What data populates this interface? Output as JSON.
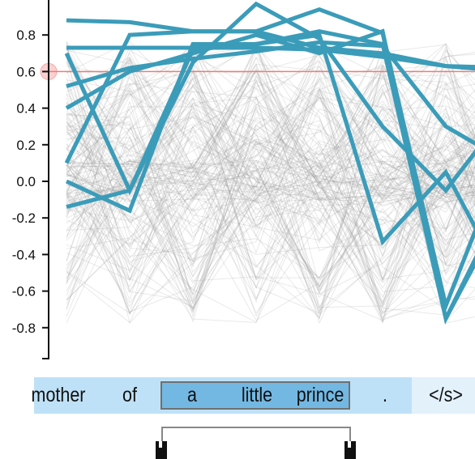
{
  "chart_data": {
    "type": "line",
    "y_ticks": [
      "0.8",
      "0.6",
      "0.4",
      "0.2",
      "0.0",
      "-0.2",
      "-0.4",
      "-0.6",
      "-0.8"
    ],
    "y_tick_values": [
      0.8,
      0.6,
      0.4,
      0.2,
      0.0,
      -0.2,
      -0.4,
      -0.6,
      -0.8
    ],
    "ylim": [
      -0.98,
      1.0
    ],
    "threshold": 0.6,
    "x_positions": 8,
    "highlight_color": "#3b9cb9",
    "threshold_color": "#f07a7a",
    "background_line_color": "#9a9a9a",
    "highlighted_series": [
      {
        "values": [
          0.88,
          0.87,
          0.82,
          0.82,
          0.73,
          0.7,
          0.63,
          0.6
        ]
      },
      {
        "values": [
          0.73,
          0.73,
          0.73,
          0.73,
          0.72,
          0.68,
          0.63,
          0.62
        ]
      },
      {
        "values": [
          0.52,
          0.62,
          0.67,
          0.71,
          0.76,
          0.74,
          0.3,
          0.1
        ]
      },
      {
        "values": [
          0.7,
          -0.05,
          0.65,
          0.97,
          0.78,
          0.3,
          -0.05,
          0.4
        ]
      },
      {
        "values": [
          0.1,
          0.8,
          0.82,
          0.82,
          0.94,
          0.81,
          -0.68,
          0.2
        ]
      },
      {
        "values": [
          -0.14,
          -0.05,
          0.72,
          0.75,
          0.82,
          0.75,
          -0.75,
          -0.05
        ]
      },
      {
        "values": [
          0.0,
          -0.16,
          0.75,
          0.75,
          0.8,
          -0.33,
          0.05,
          -0.6
        ]
      },
      {
        "values": [
          0.4,
          0.6,
          0.7,
          0.8,
          0.7,
          0.82,
          -0.75,
          -0.1
        ]
      }
    ]
  },
  "tokens": [
    "mother",
    "of",
    "a",
    "little",
    "prince",
    ".",
    "</s>"
  ],
  "selection": {
    "start": 2,
    "end": 4
  },
  "colors": {
    "token_bg": "#bfe1f7",
    "selection_bg": "#73b8e3",
    "last_token_bg": "#e3f1fb"
  }
}
